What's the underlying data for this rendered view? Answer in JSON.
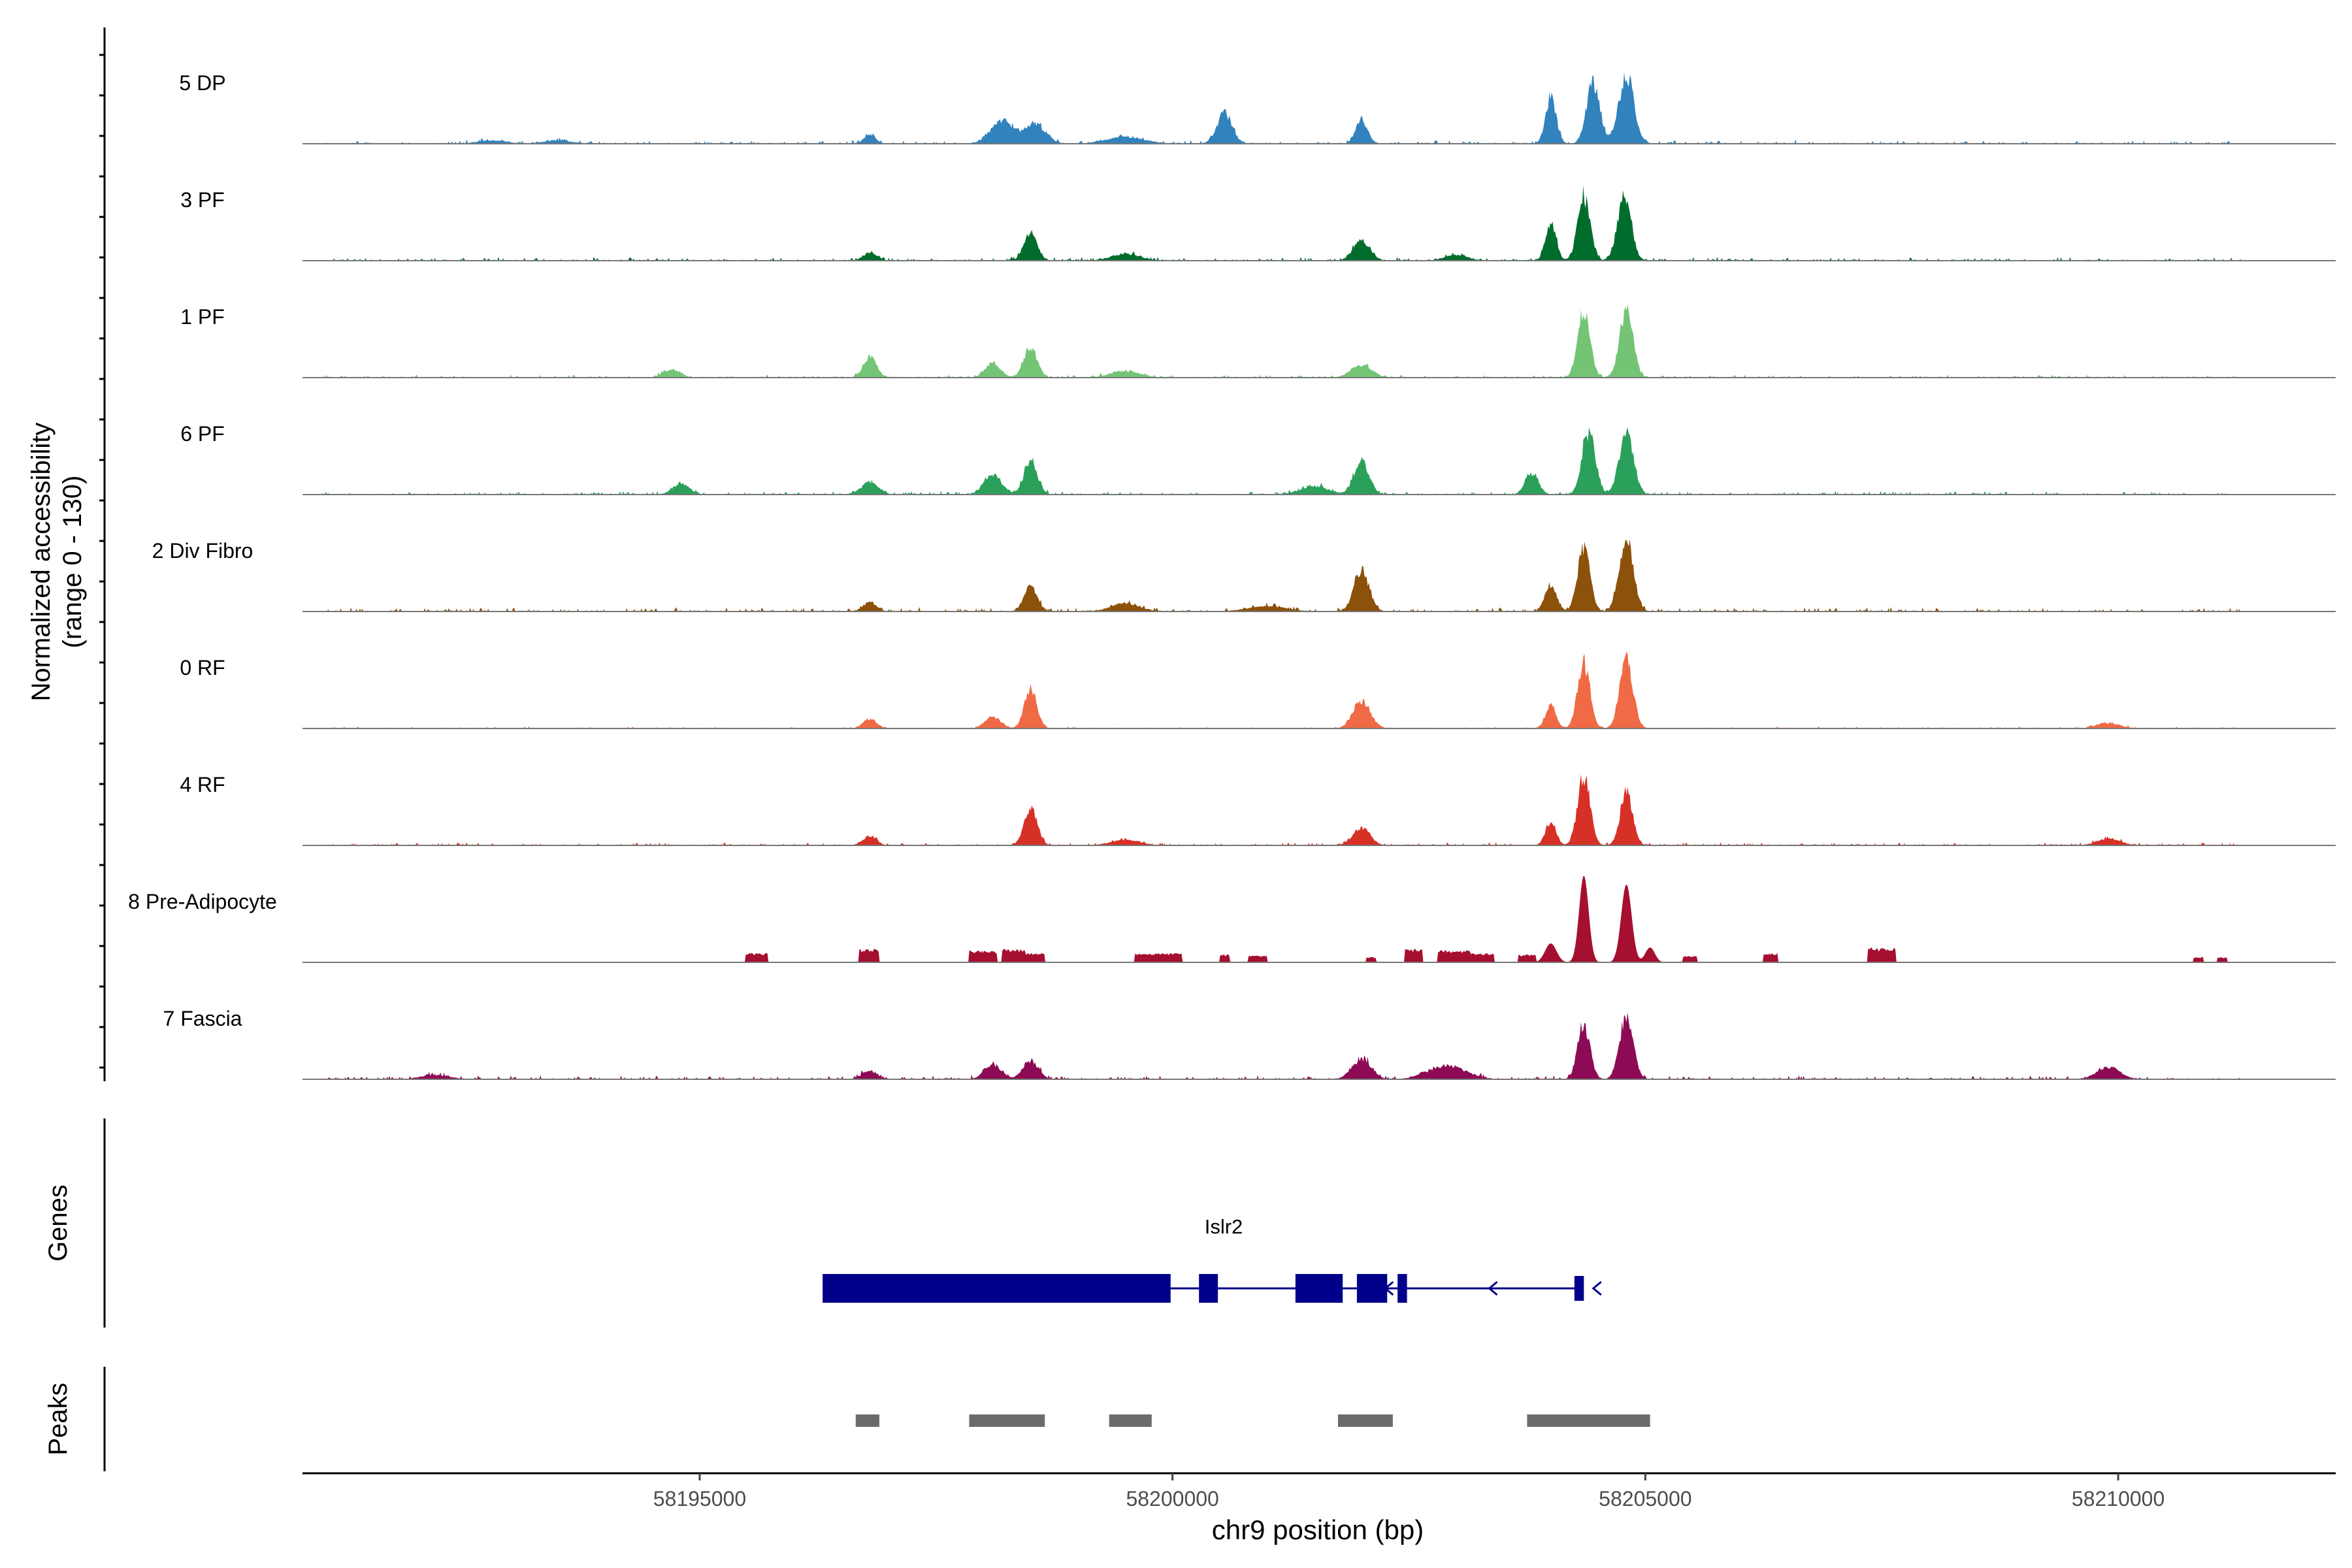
{
  "chart_data": {
    "type": "area",
    "title": "",
    "chromosome": "chr9",
    "xlabel": "chr9 position (bp)",
    "ylabel_line1": "Normalized accessibility",
    "ylabel_line2": "(range 0 - 130)",
    "y_range": [
      0,
      130
    ],
    "xlim": [
      58190800,
      58212300
    ],
    "x_ticks": [
      58195000,
      58200000,
      58205000,
      58210000
    ],
    "x_tick_labels": [
      "58195000",
      "58200000",
      "58205000",
      "58210000"
    ],
    "grid": false,
    "tracks": [
      {
        "name": "5 DP",
        "color": "#3182bd",
        "noise": 6,
        "x_start": 58191000,
        "x_end": 58211300,
        "peaks": [
          [
            58204450,
            90,
            70
          ],
          [
            58204000,
            68,
            55
          ],
          [
            58204800,
            100,
            80
          ],
          [
            58200550,
            45,
            80
          ],
          [
            58202000,
            36,
            60
          ],
          [
            58198200,
            34,
            120
          ],
          [
            58198550,
            28,
            110
          ],
          [
            58196800,
            14,
            60
          ],
          [
            58199500,
            10,
            200
          ],
          [
            58192800,
            5,
            150
          ],
          [
            58193500,
            5,
            150
          ]
        ]
      },
      {
        "name": "3 PF",
        "color": "#006d2c",
        "noise": 6,
        "x_start": 58191000,
        "x_end": 58211300,
        "peaks": [
          [
            58204350,
            95,
            65
          ],
          [
            58204000,
            55,
            55
          ],
          [
            58204780,
            98,
            70
          ],
          [
            58198500,
            42,
            70
          ],
          [
            58202000,
            28,
            90
          ],
          [
            58196800,
            12,
            70
          ],
          [
            58199500,
            10,
            150
          ],
          [
            58203000,
            8,
            120
          ]
        ]
      },
      {
        "name": "1 PF",
        "color": "#74c476",
        "noise": 5,
        "x_start": 58191000,
        "x_end": 58211300,
        "peaks": [
          [
            58204350,
            98,
            65
          ],
          [
            58204800,
            98,
            70
          ],
          [
            58198500,
            44,
            70
          ],
          [
            58196800,
            30,
            70
          ],
          [
            58198100,
            22,
            80
          ],
          [
            58202000,
            18,
            110
          ],
          [
            58194700,
            12,
            90
          ],
          [
            58199500,
            10,
            150
          ]
        ]
      },
      {
        "name": "6 PF",
        "color": "#2aa05a",
        "noise": 6,
        "x_start": 58191000,
        "x_end": 58211300,
        "peaks": [
          [
            58204400,
            92,
            70
          ],
          [
            58204800,
            90,
            75
          ],
          [
            58203800,
            30,
            70
          ],
          [
            58198500,
            50,
            70
          ],
          [
            58198100,
            30,
            90
          ],
          [
            58202000,
            48,
            80
          ],
          [
            58196800,
            18,
            90
          ],
          [
            58194800,
            15,
            90
          ],
          [
            58201500,
            12,
            150
          ]
        ]
      },
      {
        "name": "2 Div Fibro",
        "color": "#8c510a",
        "noise": 7,
        "x_start": 58191000,
        "x_end": 58211300,
        "peaks": [
          [
            58204350,
            95,
            65
          ],
          [
            58204000,
            40,
            60
          ],
          [
            58204800,
            105,
            75
          ],
          [
            58202000,
            60,
            80
          ],
          [
            58198500,
            36,
            70
          ],
          [
            58196800,
            14,
            70
          ],
          [
            58199500,
            12,
            150
          ],
          [
            58201000,
            8,
            200
          ]
        ]
      },
      {
        "name": "0 RF",
        "color": "#ef6a45",
        "noise": 3,
        "x_start": 58191000,
        "x_end": 58211300,
        "peaks": [
          [
            58204350,
            98,
            65
          ],
          [
            58204000,
            35,
            55
          ],
          [
            58204800,
            100,
            70
          ],
          [
            58198500,
            60,
            65
          ],
          [
            58198100,
            18,
            80
          ],
          [
            58202000,
            42,
            90
          ],
          [
            58196800,
            14,
            70
          ],
          [
            58209900,
            8,
            120
          ]
        ]
      },
      {
        "name": "4 RF",
        "color": "#d73027",
        "noise": 5,
        "x_start": 58191000,
        "x_end": 58211300,
        "peaks": [
          [
            58204350,
            102,
            65
          ],
          [
            58204000,
            35,
            55
          ],
          [
            58204800,
            80,
            65
          ],
          [
            58198500,
            55,
            70
          ],
          [
            58202000,
            26,
            90
          ],
          [
            58196800,
            14,
            70
          ],
          [
            58209900,
            10,
            120
          ],
          [
            58199500,
            8,
            150
          ]
        ]
      },
      {
        "name": "8 Pre-Adipocyte",
        "color": "#a50f30",
        "noise": 0,
        "x_start": 58191000,
        "x_end": 58211300,
        "peaks": [
          [
            58204350,
            128,
            50
          ],
          [
            58204800,
            115,
            55
          ],
          [
            58204000,
            28,
            60
          ],
          [
            58205050,
            22,
            50
          ]
        ],
        "segments": [
          [
            58195480,
            58195720,
            14
          ],
          [
            58196680,
            58196900,
            20
          ],
          [
            58197850,
            58198150,
            18
          ],
          [
            58198200,
            58198450,
            20
          ],
          [
            58198450,
            58198650,
            14
          ],
          [
            58199600,
            58200100,
            14
          ],
          [
            58200500,
            58200600,
            12
          ],
          [
            58200800,
            58201000,
            10
          ],
          [
            58202050,
            58202150,
            8
          ],
          [
            58202450,
            58202650,
            20
          ],
          [
            58202800,
            58203150,
            18
          ],
          [
            58203150,
            58203400,
            14
          ],
          [
            58203650,
            58203850,
            12
          ],
          [
            58205400,
            58205550,
            10
          ],
          [
            58206250,
            58206400,
            14
          ],
          [
            58207350,
            58207650,
            22
          ],
          [
            58210800,
            58210900,
            8
          ],
          [
            58211050,
            58211150,
            8
          ]
        ]
      },
      {
        "name": "7 Fascia",
        "color": "#8d0a55",
        "noise": 6,
        "x_start": 58191000,
        "x_end": 58211300,
        "peaks": [
          [
            58204350,
            80,
            65
          ],
          [
            58204800,
            95,
            70
          ],
          [
            58198500,
            28,
            80
          ],
          [
            58198100,
            22,
            90
          ],
          [
            58202000,
            30,
            100
          ],
          [
            58202900,
            20,
            200
          ],
          [
            58196800,
            12,
            80
          ],
          [
            58209900,
            18,
            120
          ],
          [
            58192200,
            6,
            150
          ]
        ]
      }
    ],
    "genes_label": "Genes",
    "gene": {
      "name": "Islr2",
      "color": "#00008b",
      "line": [
        58196300,
        58204350
      ],
      "exons": [
        [
          58196300,
          58199980,
          "big"
        ],
        [
          58200280,
          58200480,
          "big"
        ],
        [
          58201300,
          58201800,
          "big"
        ],
        [
          58201950,
          58202270,
          "big"
        ],
        [
          58202380,
          58202480,
          "big"
        ],
        [
          58204250,
          58204350,
          "small"
        ]
      ],
      "arrows": [
        58202250,
        58203350,
        58204450
      ]
    },
    "peaks_label": "Peaks",
    "peak_regions": [
      [
        58196650,
        58196900
      ],
      [
        58197850,
        58198650
      ],
      [
        58199330,
        58199780
      ],
      [
        58201750,
        58202330
      ],
      [
        58203750,
        58205050
      ]
    ],
    "peak_color": "#6b6b6b"
  }
}
